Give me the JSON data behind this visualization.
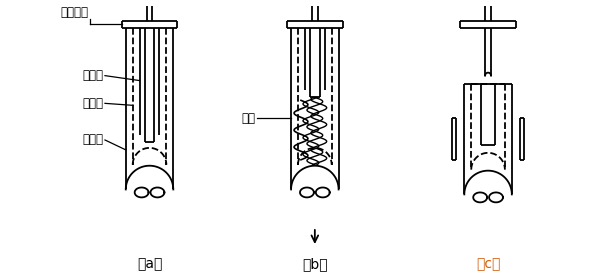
{
  "bg_color": "#ffffff",
  "line_color": "#000000",
  "label_a": "（a）",
  "label_b": "（b）",
  "label_c": "（c）",
  "label_upper_electrode": "上部电极",
  "label_arc_rod": "消弧棒",
  "label_arc_tube": "消弧管",
  "label_fuse_tube": "熔丝管",
  "label_arc": "电弧",
  "figsize": [
    5.98,
    2.75
  ],
  "dpi": 100
}
